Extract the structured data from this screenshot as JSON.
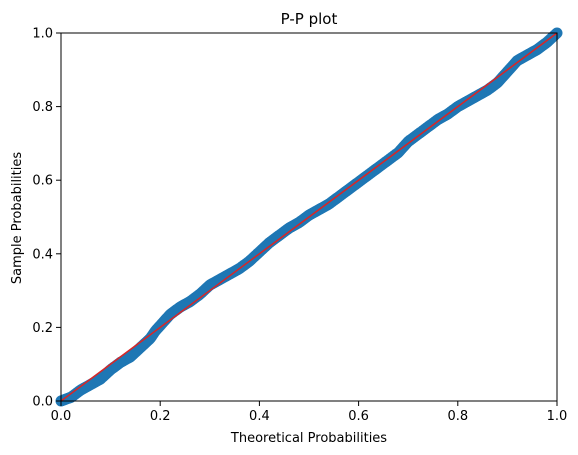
{
  "chart_data": {
    "type": "scatter",
    "title": "P-P plot",
    "xlabel": "Theoretical Probabilities",
    "ylabel": "Sample Probabilities",
    "xlim": [
      0,
      1
    ],
    "ylim": [
      0,
      1
    ],
    "xticks": [
      "0.0",
      "0.2",
      "0.4",
      "0.6",
      "0.8",
      "1.0"
    ],
    "yticks": [
      "0.0",
      "0.2",
      "0.4",
      "0.6",
      "0.8",
      "1.0"
    ],
    "grid": false,
    "point_color": "#1f77b4",
    "line_color": "#d62728",
    "reference_line": {
      "x": [
        0,
        1
      ],
      "y": [
        0,
        1
      ]
    },
    "curve": {
      "x": [
        0.0,
        0.02,
        0.04,
        0.06,
        0.08,
        0.1,
        0.12,
        0.14,
        0.16,
        0.18,
        0.19,
        0.2,
        0.22,
        0.24,
        0.26,
        0.28,
        0.3,
        0.32,
        0.34,
        0.36,
        0.38,
        0.4,
        0.42,
        0.44,
        0.46,
        0.48,
        0.5,
        0.52,
        0.54,
        0.56,
        0.58,
        0.6,
        0.62,
        0.64,
        0.66,
        0.68,
        0.7,
        0.72,
        0.74,
        0.76,
        0.78,
        0.8,
        0.82,
        0.84,
        0.86,
        0.88,
        0.9,
        0.92,
        0.94,
        0.96,
        0.98,
        1.0
      ],
      "y": [
        0.0,
        0.01,
        0.03,
        0.045,
        0.06,
        0.085,
        0.105,
        0.12,
        0.145,
        0.17,
        0.19,
        0.205,
        0.235,
        0.255,
        0.27,
        0.29,
        0.315,
        0.33,
        0.345,
        0.36,
        0.38,
        0.405,
        0.43,
        0.45,
        0.47,
        0.485,
        0.505,
        0.52,
        0.535,
        0.555,
        0.575,
        0.595,
        0.615,
        0.635,
        0.655,
        0.675,
        0.705,
        0.725,
        0.745,
        0.765,
        0.78,
        0.8,
        0.815,
        0.83,
        0.845,
        0.865,
        0.895,
        0.925,
        0.94,
        0.955,
        0.975,
        1.0
      ]
    }
  }
}
